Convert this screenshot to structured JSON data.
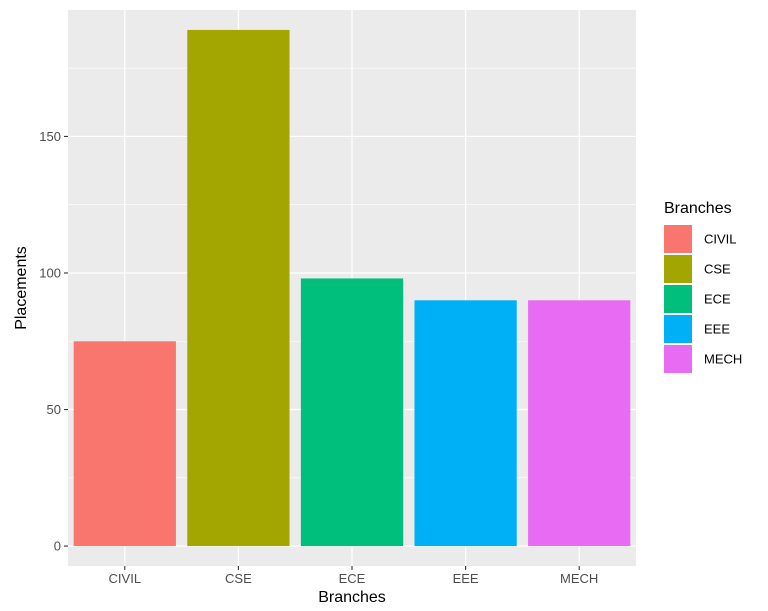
{
  "chart_data": {
    "type": "bar",
    "categories": [
      "CIVIL",
      "CSE",
      "ECE",
      "EEE",
      "MECH"
    ],
    "values": [
      75,
      189,
      98,
      90,
      90
    ],
    "colors": [
      "#F8766D",
      "#A3A500",
      "#00BF7D",
      "#00B0F6",
      "#E76BF3"
    ],
    "xlabel": "Branches",
    "ylabel": "Placements",
    "ylim": [
      -7.3,
      196.3
    ],
    "yticks": [
      0,
      50,
      100,
      150
    ],
    "grid": true,
    "legend": {
      "title": "Branches",
      "position": "right",
      "entries": [
        "CIVIL",
        "CSE",
        "ECE",
        "EEE",
        "MECH"
      ]
    }
  }
}
